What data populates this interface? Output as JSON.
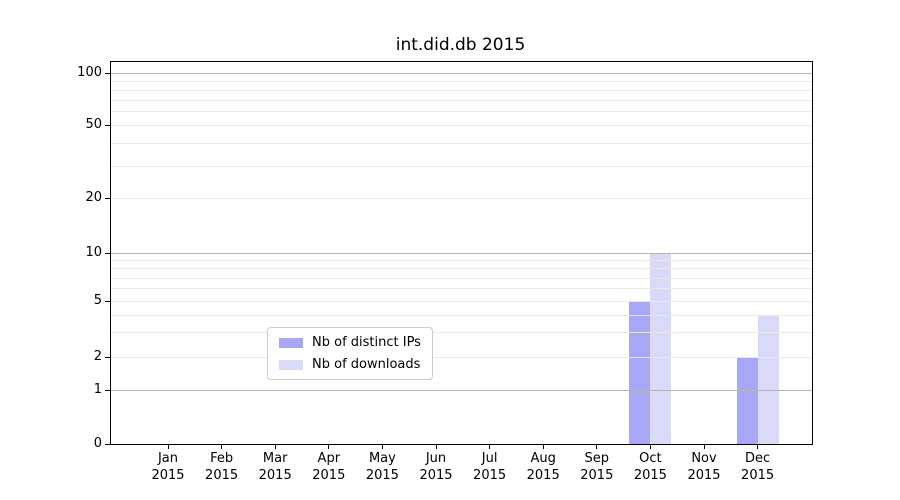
{
  "chart_data": {
    "type": "bar",
    "title": "int.did.db 2015",
    "categories": [
      "Jan",
      "Feb",
      "Mar",
      "Apr",
      "May",
      "Jun",
      "Jul",
      "Aug",
      "Sep",
      "Oct",
      "Nov",
      "Dec"
    ],
    "year_label": "2015",
    "series": [
      {
        "name": "Nb of distinct IPs",
        "color": "#a7a7f5",
        "values": [
          0,
          0,
          0,
          0,
          0,
          0,
          0,
          0,
          0,
          5,
          0,
          2
        ]
      },
      {
        "name": "Nb of downloads",
        "color": "#d9d9f8",
        "values": [
          0,
          0,
          0,
          0,
          0,
          0,
          0,
          0,
          0,
          10,
          0,
          4
        ]
      }
    ],
    "y_axis": {
      "scale": "symlog",
      "ylim": [
        0,
        100
      ],
      "major_ticks": [
        0,
        1,
        2,
        5,
        10,
        20,
        50,
        100
      ],
      "minor_gridlines": [
        3,
        4,
        6,
        7,
        8,
        9,
        30,
        40,
        60,
        70,
        80,
        90
      ],
      "decade_lines": [
        1,
        10,
        100
      ]
    },
    "xlabel": "",
    "ylabel": "",
    "grid": true,
    "legend_position": "lower center"
  },
  "colors": {
    "bar_distinct_ips": "#a7a7f5",
    "bar_downloads": "#d9d9f8",
    "gridline_minor": "#e9e9e9",
    "gridline_decade": "#b2b6ba",
    "axis": "#000000",
    "background": "#ffffff"
  }
}
